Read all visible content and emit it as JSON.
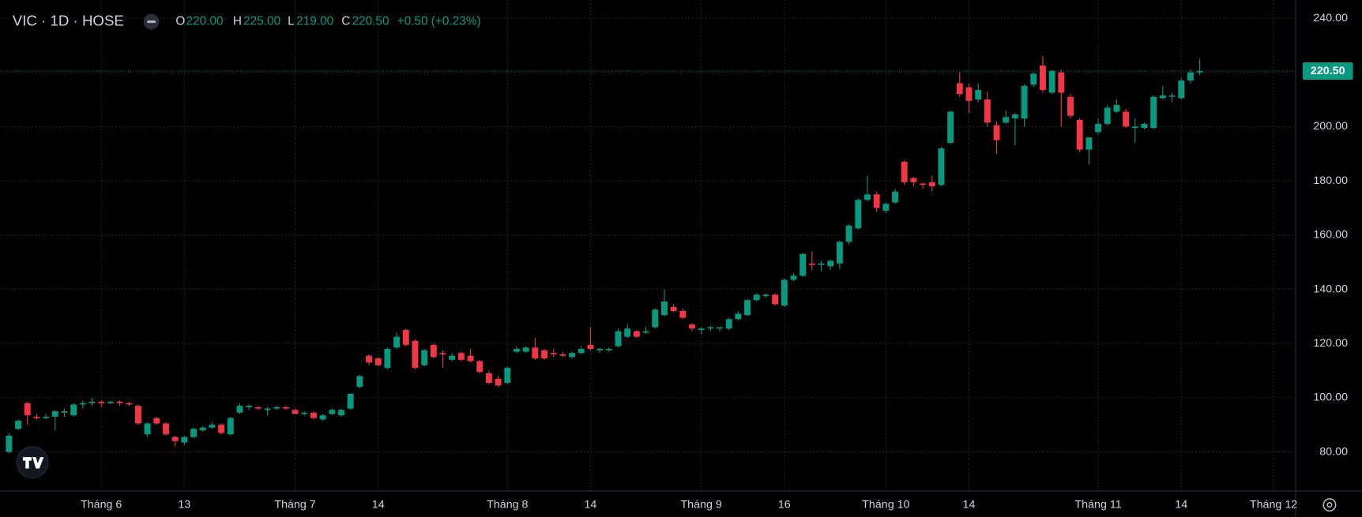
{
  "header": {
    "symbol": "VIC · 1D · HOSE",
    "open_label": "O",
    "open": "220.00",
    "high_label": "H",
    "high": "225.00",
    "low_label": "L",
    "low": "219.00",
    "close_label": "C",
    "close": "220.50",
    "change": "+0.50 (+0.23%)"
  },
  "chart_data": {
    "type": "candlestick",
    "up_color": "#089981",
    "down_color": "#f23645",
    "grid": true,
    "last_price": {
      "value": 220.5,
      "label": "220.50"
    },
    "ylim": [
      65.6,
      246.7
    ],
    "yticks": [
      {
        "value": 80,
        "label": "80.00"
      },
      {
        "value": 100,
        "label": "100.00"
      },
      {
        "value": 120,
        "label": "120.00"
      },
      {
        "value": 140,
        "label": "140.00"
      },
      {
        "value": 160,
        "label": "160.00"
      },
      {
        "value": 180,
        "label": "180.00"
      },
      {
        "value": 200,
        "label": "200.00"
      },
      {
        "value": 220,
        "label": "220.00"
      },
      {
        "value": 240,
        "label": "240.00"
      }
    ],
    "xlim": [
      -0.94,
      139.4
    ],
    "xticks": [
      {
        "value": 10,
        "label": "Tháng 6"
      },
      {
        "value": 19,
        "label": "13"
      },
      {
        "value": 31,
        "label": "Tháng 7"
      },
      {
        "value": 40,
        "label": "14"
      },
      {
        "value": 54,
        "label": "Tháng 8"
      },
      {
        "value": 63,
        "label": "14"
      },
      {
        "value": 75,
        "label": "Tháng 9"
      },
      {
        "value": 84,
        "label": "16"
      },
      {
        "value": 95,
        "label": "Tháng 10"
      },
      {
        "value": 104,
        "label": "14"
      },
      {
        "value": 118,
        "label": "Tháng 11"
      },
      {
        "value": 127,
        "label": "14"
      },
      {
        "value": 137,
        "label": "Tháng 12"
      }
    ],
    "candles": [
      [
        80,
        87,
        79.5,
        86
      ],
      [
        88.5,
        92,
        88,
        91.5
      ],
      [
        98,
        98.5,
        90,
        93.5
      ],
      [
        93,
        94,
        92,
        92.5
      ],
      [
        92.5,
        94,
        92,
        93
      ],
      [
        93,
        95.5,
        88,
        95
      ],
      [
        94.5,
        96,
        93,
        95
      ],
      [
        93.5,
        98,
        93,
        97.5
      ],
      [
        97.5,
        99,
        96,
        98
      ],
      [
        98,
        100,
        97,
        98.5
      ],
      [
        98.5,
        99,
        96.5,
        98
      ],
      [
        98,
        99,
        97.5,
        98.5
      ],
      [
        98.5,
        99,
        97,
        98
      ],
      [
        98,
        98.5,
        97,
        97.5
      ],
      [
        97,
        97.5,
        90,
        90.5
      ],
      [
        86.5,
        91,
        85.5,
        90.5
      ],
      [
        92.5,
        93,
        90,
        90.5
      ],
      [
        90.5,
        91,
        86,
        86.5
      ],
      [
        85.5,
        86,
        82,
        84
      ],
      [
        83.5,
        86,
        82.5,
        85.5
      ],
      [
        85.5,
        89,
        85,
        88.5
      ],
      [
        88,
        89.5,
        87.5,
        89
      ],
      [
        89,
        91,
        88.5,
        90
      ],
      [
        90,
        90.5,
        86.5,
        87
      ],
      [
        86.5,
        93,
        86,
        92.5
      ],
      [
        94.5,
        98,
        94,
        97
      ],
      [
        96.5,
        97.5,
        95.5,
        97
      ],
      [
        96.5,
        97,
        95.5,
        96
      ],
      [
        95.5,
        96.5,
        93.5,
        96
      ],
      [
        96,
        97,
        95.5,
        96.5
      ],
      [
        96.5,
        97,
        95.5,
        96
      ],
      [
        95.5,
        96,
        94,
        94
      ],
      [
        94,
        95,
        93.5,
        94.5
      ],
      [
        94.5,
        95,
        92,
        92.5
      ],
      [
        92,
        94,
        91.5,
        93.5
      ],
      [
        94,
        96,
        93.5,
        95.5
      ],
      [
        93.5,
        96,
        93,
        95.5
      ],
      [
        96,
        101.5,
        95.5,
        101.5
      ],
      [
        104,
        108.5,
        103.5,
        108
      ],
      [
        115.5,
        116,
        112,
        113
      ],
      [
        114.5,
        115,
        111.5,
        112
      ],
      [
        111,
        118.5,
        110.5,
        118
      ],
      [
        118.5,
        124,
        118,
        122.5
      ],
      [
        125,
        125.5,
        119,
        119.5
      ],
      [
        121,
        121.5,
        110.5,
        111
      ],
      [
        112,
        118,
        111.5,
        117.5
      ],
      [
        119.5,
        120,
        114.5,
        115
      ],
      [
        116.5,
        117.5,
        111,
        116
      ],
      [
        114,
        116.5,
        113.5,
        115.5
      ],
      [
        116.5,
        117,
        113.5,
        114
      ],
      [
        115.5,
        118,
        113,
        113.5
      ],
      [
        113.5,
        114,
        109,
        109.5
      ],
      [
        109,
        110,
        105,
        105.5
      ],
      [
        107,
        108,
        104,
        104.5
      ],
      [
        105.5,
        111.5,
        105,
        111
      ],
      [
        117,
        119,
        116.5,
        118
      ],
      [
        117,
        119,
        116.5,
        118.5
      ],
      [
        118.5,
        122,
        114,
        114.5
      ],
      [
        117.5,
        118,
        114,
        114.5
      ],
      [
        116.5,
        118,
        115,
        116
      ],
      [
        116,
        117,
        115,
        115.5
      ],
      [
        115,
        117,
        114.5,
        116.5
      ],
      [
        116.5,
        119,
        116,
        118
      ],
      [
        119.5,
        126,
        117.5,
        118
      ],
      [
        117.5,
        118.5,
        116.5,
        118
      ],
      [
        117.5,
        118.5,
        117,
        118
      ],
      [
        119,
        125.5,
        118.5,
        124.5
      ],
      [
        122.5,
        127,
        122,
        125.5
      ],
      [
        124.5,
        125,
        122,
        122.5
      ],
      [
        124,
        126,
        123.5,
        124.5
      ],
      [
        126,
        133,
        125.5,
        132.5
      ],
      [
        130.5,
        140,
        130,
        135.5
      ],
      [
        133.5,
        134.5,
        131.5,
        132
      ],
      [
        132,
        133,
        129,
        129.5
      ],
      [
        127,
        127.5,
        124.5,
        125.5
      ],
      [
        125,
        126,
        123.5,
        125.5
      ],
      [
        125.5,
        126.5,
        124.5,
        126
      ],
      [
        125.5,
        126,
        124.5,
        126
      ],
      [
        125.5,
        129.5,
        125,
        129
      ],
      [
        129,
        132,
        128.5,
        131
      ],
      [
        130.5,
        136.5,
        130,
        136
      ],
      [
        136,
        138.5,
        135.5,
        138
      ],
      [
        137.5,
        138.5,
        137,
        138
      ],
      [
        138,
        138.5,
        134,
        134.5
      ],
      [
        134,
        144,
        133.5,
        143.5
      ],
      [
        143.5,
        146,
        143,
        145
      ],
      [
        145,
        153.5,
        144.5,
        153
      ],
      [
        149.5,
        154,
        147,
        149
      ],
      [
        149,
        150.5,
        146.5,
        149.5
      ],
      [
        148.5,
        151,
        147,
        150.5
      ],
      [
        149.5,
        158,
        147.5,
        157.5
      ],
      [
        157.5,
        164,
        156.5,
        163.5
      ],
      [
        162.5,
        173.5,
        162,
        173
      ],
      [
        173,
        182,
        172.5,
        175
      ],
      [
        175,
        176,
        168.5,
        170
      ],
      [
        169,
        172,
        168,
        171.5
      ],
      [
        172,
        177,
        171.5,
        176
      ],
      [
        187,
        187.5,
        178.5,
        179.5
      ],
      [
        181,
        181.5,
        178,
        179.5
      ],
      [
        179,
        179.5,
        177,
        178.5
      ],
      [
        179.5,
        182,
        176,
        178
      ],
      [
        178.5,
        192.5,
        178,
        192
      ],
      [
        194,
        206,
        193.5,
        205.5
      ],
      [
        216,
        220,
        211,
        212
      ],
      [
        214.5,
        216,
        205,
        209.5
      ],
      [
        210,
        216,
        209,
        213.5
      ],
      [
        210,
        213,
        200,
        201.5
      ],
      [
        200.5,
        202,
        190,
        195
      ],
      [
        201.5,
        206,
        201,
        203.5
      ],
      [
        203,
        205,
        193,
        204.5
      ],
      [
        203,
        215.5,
        200,
        215
      ],
      [
        215.5,
        220,
        214.5,
        219.5
      ],
      [
        222.5,
        226,
        212.5,
        213.5
      ],
      [
        212.5,
        221,
        212,
        220.5
      ],
      [
        220,
        221,
        200,
        212.5
      ],
      [
        211,
        212,
        203,
        204
      ],
      [
        202.5,
        203,
        190.5,
        191.5
      ],
      [
        191.5,
        196,
        186,
        196
      ],
      [
        198,
        203,
        197,
        201
      ],
      [
        201,
        208,
        200.5,
        207
      ],
      [
        205.5,
        210,
        205,
        208
      ],
      [
        205.5,
        206.5,
        199.5,
        200
      ],
      [
        199.5,
        203,
        194,
        200
      ],
      [
        199.5,
        201.5,
        199,
        201
      ],
      [
        199.5,
        211.5,
        199,
        211
      ],
      [
        210.5,
        215,
        210,
        211.5
      ],
      [
        211,
        212.5,
        209,
        211.5
      ],
      [
        210.5,
        218,
        210,
        217
      ],
      [
        217,
        221,
        216,
        220
      ],
      [
        220,
        225,
        219,
        220.5
      ]
    ]
  }
}
